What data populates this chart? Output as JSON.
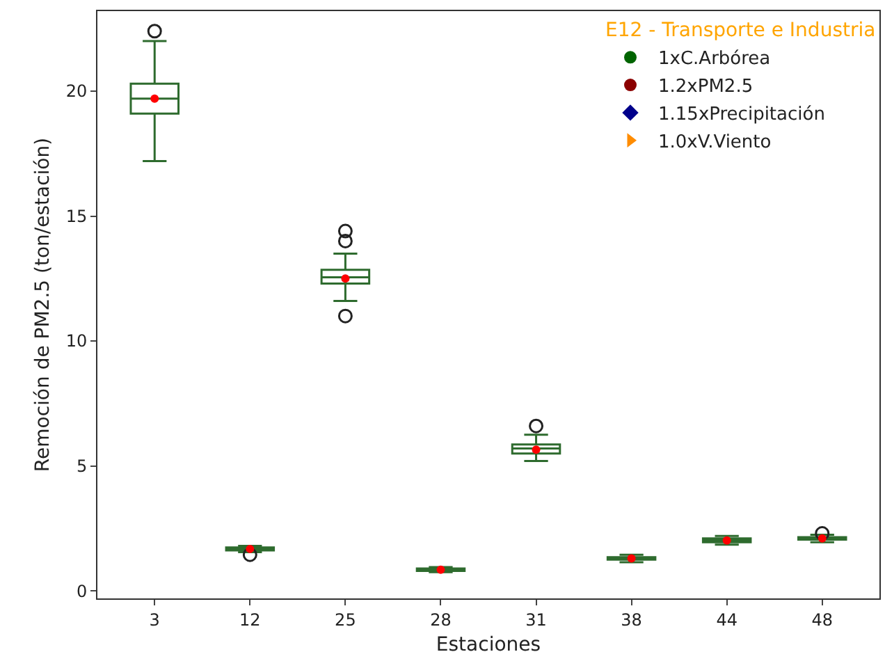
{
  "chart_data": {
    "type": "box",
    "xlabel": "Estaciones",
    "ylabel": "Remoción de PM2.5 (ton/estación)",
    "legend_title": "E12 - Transporte e Industria",
    "categories": [
      "3",
      "12",
      "25",
      "28",
      "31",
      "38",
      "44",
      "48"
    ],
    "ylim": [
      -0.3,
      23.2
    ],
    "yticks": [
      0,
      5,
      10,
      15,
      20
    ],
    "grid": false,
    "legend": "top right",
    "series": [
      {
        "color": "#2e6b2e",
        "boxes": [
          {
            "low": 17.2,
            "q1": 19.1,
            "median": 19.7,
            "q3": 20.3,
            "high": 22.0,
            "mean": 19.7,
            "outliers": [
              22.4
            ]
          },
          {
            "low": 1.55,
            "q1": 1.62,
            "median": 1.68,
            "q3": 1.74,
            "high": 1.8,
            "mean": 1.68,
            "outliers": [
              1.45
            ]
          },
          {
            "low": 11.6,
            "q1": 12.3,
            "median": 12.55,
            "q3": 12.85,
            "high": 13.5,
            "mean": 12.5,
            "outliers": [
              14.4,
              14.0,
              11.0
            ]
          },
          {
            "low": 0.75,
            "q1": 0.8,
            "median": 0.85,
            "q3": 0.9,
            "high": 0.95,
            "mean": 0.85
          },
          {
            "low": 5.2,
            "q1": 5.5,
            "median": 5.7,
            "q3": 5.86,
            "high": 6.25,
            "mean": 5.65,
            "outliers": [
              6.6
            ]
          },
          {
            "low": 1.15,
            "q1": 1.25,
            "median": 1.3,
            "q3": 1.35,
            "high": 1.45,
            "mean": 1.3
          },
          {
            "low": 1.85,
            "q1": 1.95,
            "median": 2.02,
            "q3": 2.1,
            "high": 2.2,
            "mean": 2.02
          },
          {
            "low": 1.95,
            "q1": 2.05,
            "median": 2.1,
            "q3": 2.15,
            "high": 2.25,
            "mean": 2.1,
            "outliers": [
              2.3
            ]
          }
        ]
      },
      {
        "type": "scatter",
        "name": "1xC.Arbórea",
        "color": "#006400",
        "marker": "circle",
        "values": [
          null,
          null,
          null,
          null,
          null,
          null,
          null,
          null
        ]
      },
      {
        "type": "scatter",
        "name": "1.2xPM2.5",
        "color": "#8b0000",
        "marker": "circle",
        "values": [
          null,
          null,
          null,
          null,
          null,
          null,
          null,
          null
        ]
      },
      {
        "type": "scatter",
        "name": "1.15xPrecipitación",
        "color": "#00008b",
        "marker": "diamond",
        "values": [
          null,
          null,
          null,
          null,
          null,
          null,
          null,
          null
        ]
      },
      {
        "type": "scatter",
        "name": "1.0xV.Viento",
        "color": "#ff8c00",
        "marker": "triangle",
        "values": [
          null,
          null,
          null,
          null,
          null,
          null,
          null,
          null
        ]
      }
    ]
  }
}
